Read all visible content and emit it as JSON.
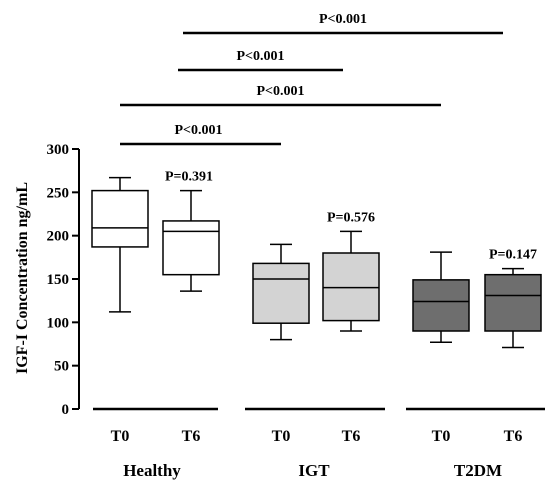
{
  "chart_data": {
    "type": "box",
    "title": "",
    "ylabel": "IGF-I Concentration ng/mL",
    "xlabel": "",
    "ylim": [
      0,
      300
    ],
    "yticks": [
      0,
      50,
      100,
      150,
      200,
      250,
      300
    ],
    "groups": [
      {
        "name": "Healthy",
        "boxes": [
          {
            "label": "T0",
            "min": 112,
            "q1": 187,
            "median": 209,
            "q3": 252,
            "max": 267,
            "fill": "#ffffff"
          },
          {
            "label": "T6",
            "min": 136,
            "q1": 155,
            "median": 205,
            "q3": 217,
            "max": 252,
            "fill": "#ffffff"
          }
        ],
        "within_pvalue": "P=0.391"
      },
      {
        "name": "IGT",
        "boxes": [
          {
            "label": "T0",
            "min": 80,
            "q1": 99,
            "median": 150,
            "q3": 168,
            "max": 190,
            "fill": "#d3d3d3"
          },
          {
            "label": "T6",
            "min": 90,
            "q1": 102,
            "median": 140,
            "q3": 180,
            "max": 205,
            "fill": "#d3d3d3"
          }
        ],
        "within_pvalue": "P=0.576"
      },
      {
        "name": "T2DM",
        "boxes": [
          {
            "label": "T0",
            "min": 77,
            "q1": 90,
            "median": 124,
            "q3": 149,
            "max": 181,
            "fill": "#6e6e6e"
          },
          {
            "label": "T6",
            "min": 71,
            "q1": 90,
            "median": 131,
            "q3": 155,
            "max": 162,
            "fill": "#6e6e6e"
          }
        ],
        "within_pvalue": "P=0.147"
      }
    ],
    "comparisons": [
      {
        "from": "Healthy T0",
        "to": "IGT T0",
        "label": "P<0.001"
      },
      {
        "from": "Healthy T0",
        "to": "T2DM T0",
        "label": "P<0.001"
      },
      {
        "from": "Healthy T6",
        "to": "IGT T6",
        "label": "P<0.001"
      },
      {
        "from": "Healthy T6",
        "to": "T2DM T6",
        "label": "P<0.001"
      }
    ]
  }
}
